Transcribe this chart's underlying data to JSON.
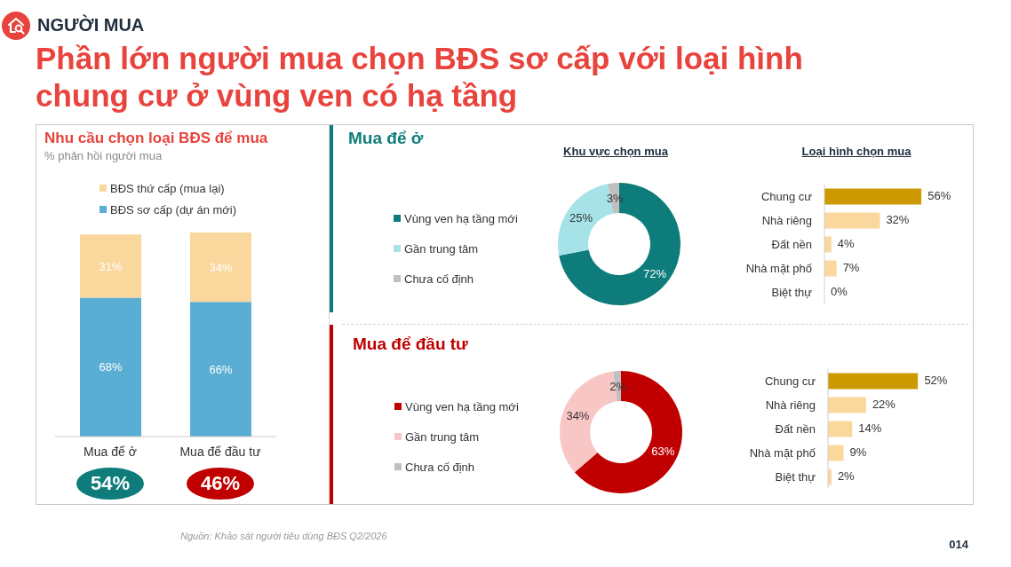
{
  "chart_data": [
    {
      "type": "other",
      "subtitle": "NGƯỜI MUA",
      "title": "Phần lớn người mua chọn BĐS sơ cấp với loại hình chung cư ở vùng ven có hạ tầng",
      "annotations": [
        "Nguồn: Khảo sát người tiêu dùng BĐS Q2/2026",
        "014"
      ]
    },
    {
      "type": "bar",
      "title": "Nhu cầu chọn loại BĐS để mua",
      "subtitle": "% phản hồi người mua",
      "categories": [
        "Mua để ở",
        "Mua để đầu tư"
      ],
      "stacked": true,
      "series": [
        {
          "name": "BĐS sơ cấp (dự án mới)",
          "color": "#5aadd3",
          "values": [
            68,
            66
          ],
          "value_labels": [
            "68%",
            "66%"
          ]
        },
        {
          "name": "BĐS thứ cấp (mua lại)",
          "color": "#fad79d",
          "values": [
            31,
            34
          ],
          "value_labels": [
            "31%",
            "34%"
          ]
        }
      ],
      "annotations": [
        "54%",
        "46%"
      ],
      "legend": "top",
      "tick_labels": "x"
    },
    {
      "type": "donut",
      "title": "Mua để ở",
      "subtitle": "Khu vực chọn mua",
      "categories": [
        "Vùng ven hạ tầng mới",
        "Gần trung tâm",
        "Chưa cố định"
      ],
      "values": [
        72,
        25,
        3
      ],
      "value_labels": [
        "72%",
        "25%",
        "3%"
      ],
      "colors": [
        "#0e7c7b",
        "#a6e3e9",
        "#bfbfbf"
      ],
      "legend": "left"
    },
    {
      "type": "bar",
      "orientation": "horizontal",
      "title": "Loại hình chọn mua",
      "categories": [
        "Chung cư",
        "Nhà riêng",
        "Đất nền",
        "Nhà mặt phố",
        "Biệt thự"
      ],
      "values": [
        56,
        32,
        4,
        7,
        0
      ],
      "value_labels": [
        "56%",
        "32%",
        "4%",
        "7%",
        "0%"
      ],
      "colors": [
        "#cc9900",
        "#fad79d",
        "#fad79d",
        "#fad79d",
        "#fad79d"
      ],
      "tick_labels": "y"
    },
    {
      "type": "donut",
      "title": "Mua để đầu tư",
      "categories": [
        "Vùng ven hạ tầng mới",
        "Gần trung tâm",
        "Chưa cố định"
      ],
      "values": [
        63,
        34,
        2
      ],
      "value_labels": [
        "63%",
        "34%",
        "2%"
      ],
      "colors": [
        "#c00000",
        "#f9c6c6",
        "#bfbfbf"
      ],
      "legend": "left"
    },
    {
      "type": "bar",
      "orientation": "horizontal",
      "categories": [
        "Chung cư",
        "Nhà riêng",
        "Đất nền",
        "Nhà mặt phố",
        "Biệt thự"
      ],
      "values": [
        52,
        22,
        14,
        9,
        2
      ],
      "value_labels": [
        "52%",
        "22%",
        "14%",
        "9%",
        "2%"
      ],
      "colors": [
        "#cc9900",
        "#fad79d",
        "#fad79d",
        "#fad79d",
        "#fad79d"
      ],
      "tick_labels": "y"
    }
  ]
}
